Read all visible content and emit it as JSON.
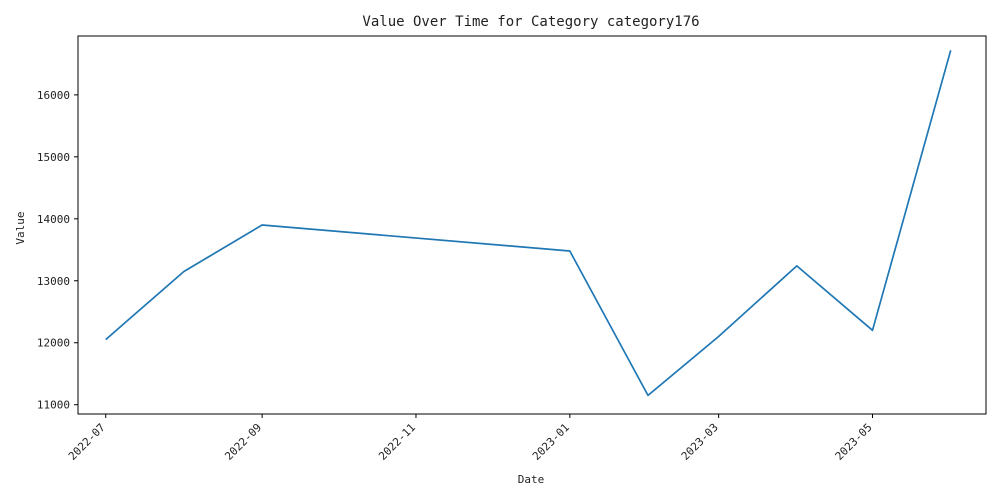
{
  "chart_data": {
    "type": "line",
    "title": "Value Over Time for Category category176",
    "xlabel": "Date",
    "ylabel": "Value",
    "grid": false,
    "legend": "none",
    "line_color": "#1f77b4",
    "x_range": [
      "2022-06-20",
      "2023-06-15"
    ],
    "ylim": [
      10850,
      16950
    ],
    "x_ticks": [
      "2022-07",
      "2022-09",
      "2022-11",
      "2023-01",
      "2023-03",
      "2023-05"
    ],
    "y_ticks": [
      11000,
      12000,
      13000,
      14000,
      15000,
      16000
    ],
    "series": [
      {
        "x": [
          "2022-07-01",
          "2022-08-01",
          "2022-09-01",
          "2023-01-01",
          "2023-02-01",
          "2023-03-01",
          "2023-04-01",
          "2023-05-01",
          "2023-06-01"
        ],
        "y": [
          12050,
          13150,
          13900,
          13480,
          11150,
          12100,
          13240,
          12200,
          16720
        ]
      }
    ]
  }
}
